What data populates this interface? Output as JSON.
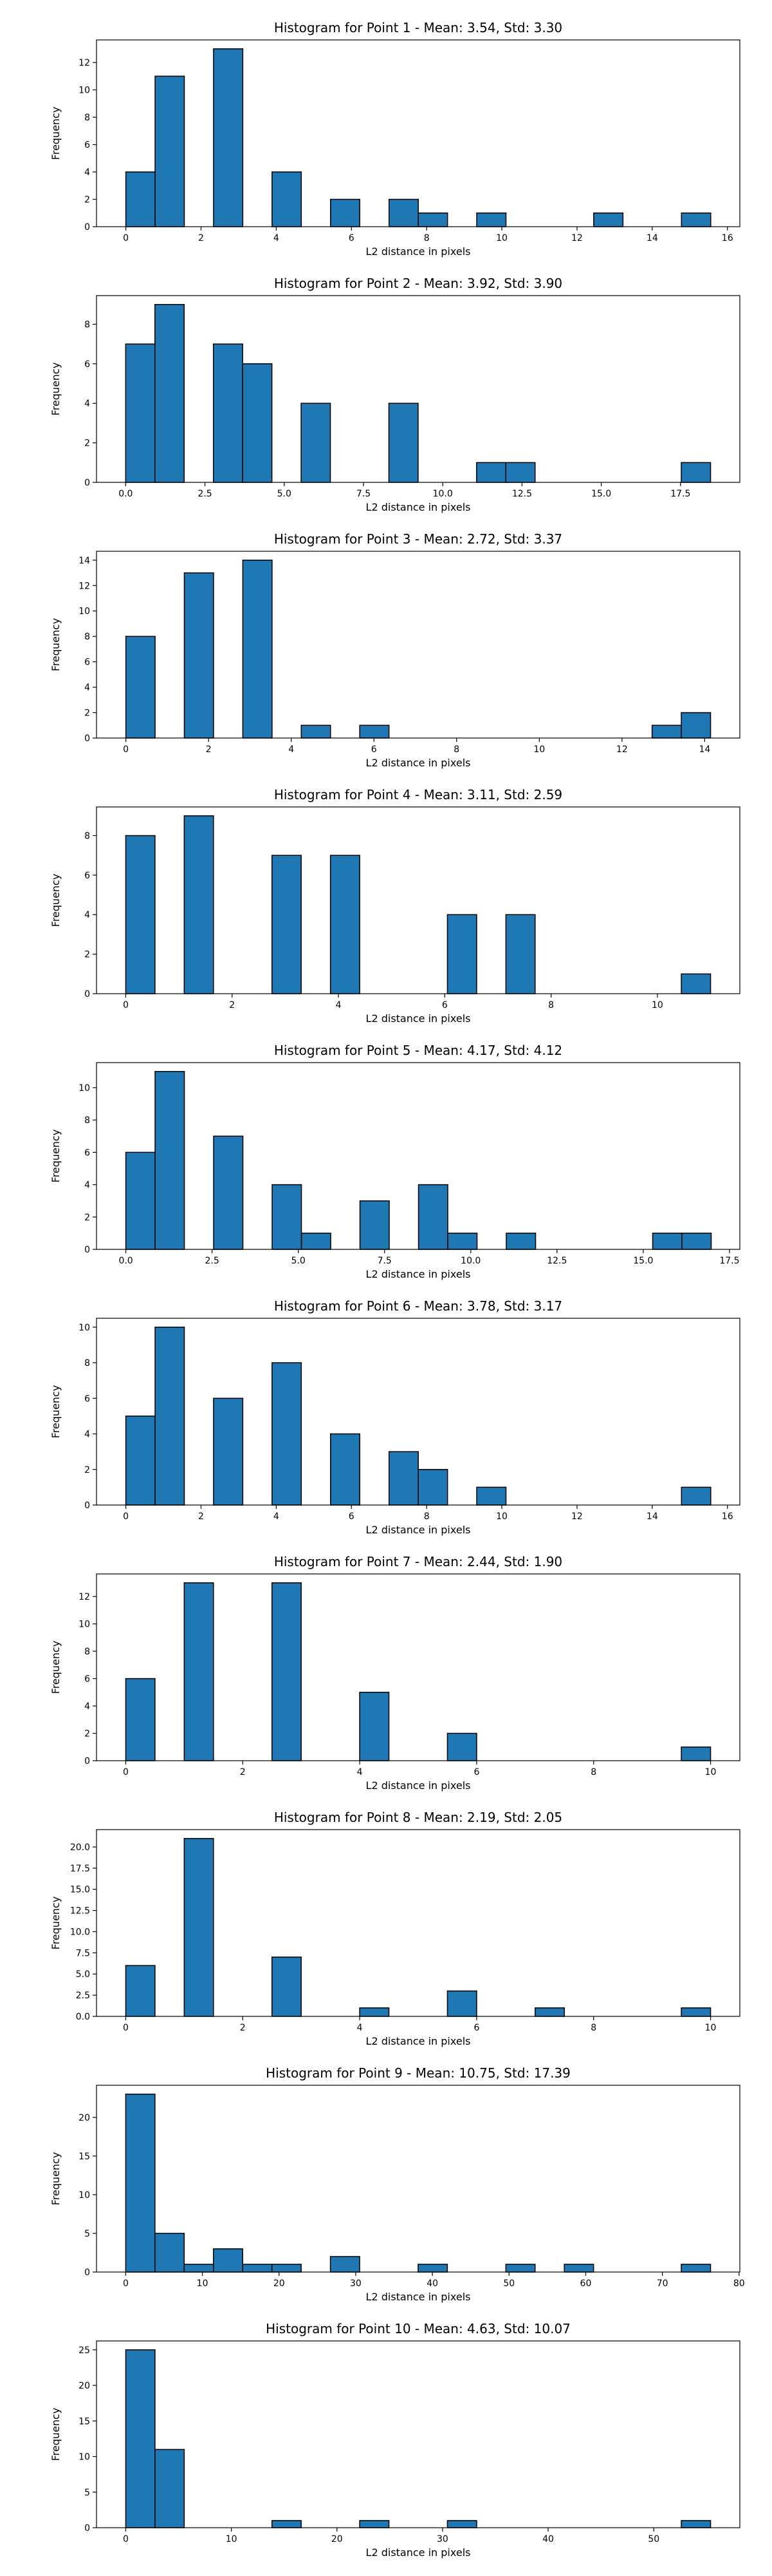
{
  "figure": {
    "bar_color": "#1f77b4",
    "edge_color": "#000000",
    "background": "#ffffff"
  },
  "chart_data": [
    {
      "type": "bar",
      "title": "Histogram for Point 1 - Mean: 3.54, Std: 3.30",
      "xlabel": "L2 distance in pixels",
      "ylabel": "Frequency",
      "xlim": [
        -0.78,
        16.33
      ],
      "ylim": [
        0,
        13.65
      ],
      "xticks": [
        0,
        2,
        4,
        6,
        8,
        10,
        12,
        14,
        16
      ],
      "xtick_labels": [
        "0",
        "2",
        "4",
        "6",
        "8",
        "10",
        "12",
        "14",
        "16"
      ],
      "yticks": [
        0,
        2,
        4,
        6,
        8,
        10,
        12
      ],
      "ytick_labels": [
        "0",
        "2",
        "4",
        "6",
        "8",
        "10",
        "12"
      ],
      "bin_edges": [
        0.0,
        0.778,
        1.556,
        2.333,
        3.111,
        3.889,
        4.667,
        5.444,
        6.222,
        7.0,
        7.778,
        8.556,
        9.333,
        10.111,
        10.889,
        11.667,
        12.444,
        13.222,
        14.0,
        14.778,
        15.556
      ],
      "counts": [
        4,
        11,
        0,
        13,
        0,
        4,
        0,
        2,
        0,
        2,
        1,
        0,
        1,
        0,
        0,
        0,
        1,
        0,
        0,
        1
      ],
      "grid": false
    },
    {
      "type": "bar",
      "title": "Histogram for Point 2 - Mean: 3.92, Std: 3.90",
      "xlabel": "L2 distance in pixels",
      "ylabel": "Frequency",
      "xlim": [
        -0.92,
        19.37
      ],
      "ylim": [
        0,
        9.45
      ],
      "xticks": [
        0,
        2.5,
        5,
        7.5,
        10,
        12.5,
        15,
        17.5
      ],
      "xtick_labels": [
        "0.0",
        "2.5",
        "5.0",
        "7.5",
        "10.0",
        "12.5",
        "15.0",
        "17.5"
      ],
      "yticks": [
        0,
        2,
        4,
        6,
        8
      ],
      "ytick_labels": [
        "0",
        "2",
        "4",
        "6",
        "8"
      ],
      "bin_edges": [
        0.0,
        0.922,
        1.845,
        2.767,
        3.689,
        4.612,
        5.534,
        6.456,
        7.379,
        8.301,
        9.223,
        10.146,
        11.068,
        11.99,
        12.913,
        13.835,
        14.757,
        15.68,
        16.602,
        17.524,
        18.447
      ],
      "counts": [
        7,
        9,
        0,
        7,
        6,
        0,
        4,
        0,
        0,
        4,
        0,
        0,
        1,
        1,
        0,
        0,
        0,
        0,
        0,
        1
      ],
      "grid": false
    },
    {
      "type": "bar",
      "title": "Histogram for Point 3 - Mean: 2.72, Std: 3.37",
      "xlabel": "L2 distance in pixels",
      "ylabel": "Frequency",
      "xlim": [
        -0.71,
        14.85
      ],
      "ylim": [
        0,
        14.7
      ],
      "xticks": [
        0,
        2,
        4,
        6,
        8,
        10,
        12,
        14
      ],
      "xtick_labels": [
        "0",
        "2",
        "4",
        "6",
        "8",
        "10",
        "12",
        "14"
      ],
      "yticks": [
        0,
        2,
        4,
        6,
        8,
        10,
        12,
        14
      ],
      "ytick_labels": [
        "0",
        "2",
        "4",
        "6",
        "8",
        "10",
        "12",
        "14"
      ],
      "bin_edges": [
        0.0,
        0.707,
        1.414,
        2.121,
        2.828,
        3.536,
        4.243,
        4.95,
        5.657,
        6.364,
        7.071,
        7.778,
        8.485,
        9.192,
        9.899,
        10.607,
        11.314,
        12.021,
        12.728,
        13.435,
        14.142
      ],
      "counts": [
        8,
        0,
        13,
        0,
        14,
        0,
        1,
        0,
        1,
        0,
        0,
        0,
        0,
        0,
        0,
        0,
        0,
        0,
        1,
        2
      ],
      "grid": false
    },
    {
      "type": "bar",
      "title": "Histogram for Point 4 - Mean: 3.11, Std: 2.59",
      "xlabel": "L2 distance in pixels",
      "ylabel": "Frequency",
      "xlim": [
        -0.55,
        11.55
      ],
      "ylim": [
        0,
        9.45
      ],
      "xticks": [
        0,
        2,
        4,
        6,
        8,
        10
      ],
      "xtick_labels": [
        "0",
        "2",
        "4",
        "6",
        "8",
        "10"
      ],
      "yticks": [
        0,
        2,
        4,
        6,
        8
      ],
      "ytick_labels": [
        "0",
        "2",
        "4",
        "6",
        "8"
      ],
      "bin_edges": [
        0.0,
        0.55,
        1.1,
        1.65,
        2.2,
        2.75,
        3.3,
        3.85,
        4.4,
        4.95,
        5.5,
        6.05,
        6.6,
        7.15,
        7.7,
        8.25,
        8.8,
        9.35,
        9.9,
        10.45,
        11.0
      ],
      "counts": [
        8,
        0,
        9,
        0,
        0,
        7,
        0,
        7,
        0,
        0,
        0,
        4,
        0,
        4,
        0,
        0,
        0,
        0,
        0,
        1
      ],
      "grid": false
    },
    {
      "type": "bar",
      "title": "Histogram for Point 5 - Mean: 4.17, Std: 4.12",
      "xlabel": "L2 distance in pixels",
      "ylabel": "Frequency",
      "xlim": [
        -0.85,
        17.8
      ],
      "ylim": [
        0,
        11.55
      ],
      "xticks": [
        0,
        2.5,
        5,
        7.5,
        10,
        12.5,
        15,
        17.5
      ],
      "xtick_labels": [
        "0.0",
        "2.5",
        "5.0",
        "7.5",
        "10.0",
        "12.5",
        "15.0",
        "17.5"
      ],
      "yticks": [
        0,
        2,
        4,
        6,
        8,
        10
      ],
      "ytick_labels": [
        "0",
        "2",
        "4",
        "6",
        "8",
        "10"
      ],
      "bin_edges": [
        0.0,
        0.848,
        1.697,
        2.545,
        3.394,
        4.242,
        5.091,
        5.939,
        6.788,
        7.636,
        8.485,
        9.333,
        10.182,
        11.03,
        11.879,
        12.727,
        13.576,
        14.424,
        15.273,
        16.121,
        16.97
      ],
      "counts": [
        6,
        11,
        0,
        7,
        0,
        4,
        1,
        0,
        3,
        0,
        4,
        1,
        0,
        1,
        0,
        0,
        0,
        0,
        1,
        1
      ],
      "grid": false
    },
    {
      "type": "bar",
      "title": "Histogram for Point 6 - Mean: 3.78, Std: 3.17",
      "xlabel": "L2 distance in pixels",
      "ylabel": "Frequency",
      "xlim": [
        -0.78,
        16.33
      ],
      "ylim": [
        0,
        10.5
      ],
      "xticks": [
        0,
        2,
        4,
        6,
        8,
        10,
        12,
        14,
        16
      ],
      "xtick_labels": [
        "0",
        "2",
        "4",
        "6",
        "8",
        "10",
        "12",
        "14",
        "16"
      ],
      "yticks": [
        0,
        2,
        4,
        6,
        8,
        10
      ],
      "ytick_labels": [
        "0",
        "2",
        "4",
        "6",
        "8",
        "10"
      ],
      "bin_edges": [
        0.0,
        0.778,
        1.556,
        2.333,
        3.111,
        3.889,
        4.667,
        5.444,
        6.222,
        7.0,
        7.778,
        8.556,
        9.333,
        10.111,
        10.889,
        11.667,
        12.444,
        13.222,
        14.0,
        14.778,
        15.556
      ],
      "counts": [
        5,
        10,
        0,
        6,
        0,
        8,
        0,
        4,
        0,
        3,
        2,
        0,
        1,
        0,
        0,
        0,
        0,
        0,
        0,
        1
      ],
      "grid": false
    },
    {
      "type": "bar",
      "title": "Histogram for Point 7 - Mean: 2.44, Std: 1.90",
      "xlabel": "L2 distance in pixels",
      "ylabel": "Frequency",
      "xlim": [
        -0.5,
        10.5
      ],
      "ylim": [
        0,
        13.65
      ],
      "xticks": [
        0,
        2,
        4,
        6,
        8,
        10
      ],
      "xtick_labels": [
        "0",
        "2",
        "4",
        "6",
        "8",
        "10"
      ],
      "yticks": [
        0,
        2,
        4,
        6,
        8,
        10,
        12
      ],
      "ytick_labels": [
        "0",
        "2",
        "4",
        "6",
        "8",
        "10",
        "12"
      ],
      "bin_edges": [
        0.0,
        0.5,
        1.0,
        1.5,
        2.0,
        2.5,
        3.0,
        3.5,
        4.0,
        4.5,
        5.0,
        5.5,
        6.0,
        6.5,
        7.0,
        7.5,
        8.0,
        8.5,
        9.0,
        9.5,
        10.0
      ],
      "counts": [
        6,
        0,
        13,
        0,
        0,
        13,
        0,
        0,
        5,
        0,
        0,
        2,
        0,
        0,
        0,
        0,
        0,
        0,
        0,
        1
      ],
      "grid": false
    },
    {
      "type": "bar",
      "title": "Histogram for Point 8 - Mean: 2.19, Std: 2.05",
      "xlabel": "L2 distance in pixels",
      "ylabel": "Frequency",
      "xlim": [
        -0.5,
        10.5
      ],
      "ylim": [
        0,
        22.05
      ],
      "xticks": [
        0,
        2,
        4,
        6,
        8,
        10
      ],
      "xtick_labels": [
        "0",
        "2",
        "4",
        "6",
        "8",
        "10"
      ],
      "yticks": [
        0,
        2.5,
        5,
        7.5,
        10,
        12.5,
        15,
        17.5,
        20
      ],
      "ytick_labels": [
        "0.0",
        "2.5",
        "5.0",
        "7.5",
        "10.0",
        "12.5",
        "15.0",
        "17.5",
        "20.0"
      ],
      "bin_edges": [
        0.0,
        0.5,
        1.0,
        1.5,
        2.0,
        2.5,
        3.0,
        3.5,
        4.0,
        4.5,
        5.0,
        5.5,
        6.0,
        6.5,
        7.0,
        7.5,
        8.0,
        8.5,
        9.0,
        9.5,
        10.0
      ],
      "counts": [
        6,
        0,
        21,
        0,
        0,
        7,
        0,
        0,
        1,
        0,
        0,
        3,
        0,
        0,
        1,
        0,
        0,
        0,
        0,
        1
      ],
      "grid": false
    },
    {
      "type": "bar",
      "title": "Histogram for Point 9 - Mean: 10.75, Std: 17.39",
      "xlabel": "L2 distance in pixels",
      "ylabel": "Frequency",
      "xlim": [
        -3.81,
        80.1
      ],
      "ylim": [
        0,
        24.15
      ],
      "xticks": [
        0,
        10,
        20,
        30,
        40,
        50,
        60,
        70,
        80
      ],
      "xtick_labels": [
        "0",
        "10",
        "20",
        "30",
        "40",
        "50",
        "60",
        "70",
        "80"
      ],
      "yticks": [
        0,
        5,
        10,
        15,
        20
      ],
      "ytick_labels": [
        "0",
        "5",
        "10",
        "15",
        "20"
      ],
      "bin_edges": [
        0.0,
        3.814,
        7.628,
        11.442,
        15.256,
        19.07,
        22.884,
        26.698,
        30.512,
        34.326,
        38.14,
        41.954,
        45.768,
        49.582,
        53.396,
        57.21,
        61.024,
        64.838,
        68.652,
        72.466,
        76.28
      ],
      "counts": [
        23,
        5,
        1,
        3,
        1,
        1,
        0,
        2,
        0,
        0,
        1,
        0,
        0,
        1,
        0,
        1,
        0,
        0,
        0,
        1
      ],
      "grid": false
    },
    {
      "type": "bar",
      "title": "Histogram for Point 10 - Mean: 4.63, Std: 10.07",
      "xlabel": "L2 distance in pixels",
      "ylabel": "Frequency",
      "xlim": [
        -2.77,
        58.15
      ],
      "ylim": [
        0,
        26.25
      ],
      "xticks": [
        0,
        10,
        20,
        30,
        40,
        50
      ],
      "xtick_labels": [
        "0",
        "10",
        "20",
        "30",
        "40",
        "50"
      ],
      "yticks": [
        0,
        5,
        10,
        15,
        20,
        25
      ],
      "ytick_labels": [
        "0",
        "5",
        "10",
        "15",
        "20",
        "25"
      ],
      "bin_edges": [
        0.0,
        2.769,
        5.538,
        8.307,
        11.076,
        13.845,
        16.614,
        19.383,
        22.152,
        24.921,
        27.69,
        30.459,
        33.228,
        35.997,
        38.766,
        41.535,
        44.304,
        47.073,
        49.842,
        52.611,
        55.38
      ],
      "counts": [
        25,
        11,
        0,
        0,
        0,
        1,
        0,
        0,
        1,
        0,
        0,
        1,
        0,
        0,
        0,
        0,
        0,
        0,
        0,
        1
      ],
      "grid": false
    }
  ]
}
